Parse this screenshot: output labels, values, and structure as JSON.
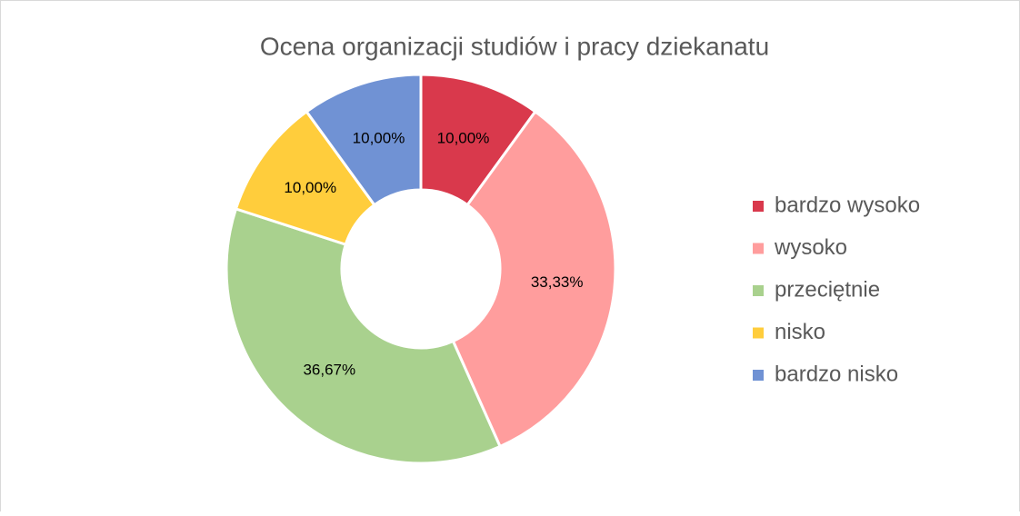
{
  "chart_data": {
    "type": "donut",
    "title": "Ocena organizacji studiów i pracy dziekanatu",
    "categories": [
      "bardzo wysoko",
      "wysoko",
      "przeciętnie",
      "nisko",
      "bardzo nisko"
    ],
    "values": [
      10,
      33.33,
      36.67,
      10,
      10
    ],
    "value_labels": [
      "10,00%",
      "33,33%",
      "36,67%",
      "10,00%",
      "10,00%"
    ],
    "colors": [
      "#d9394c",
      "#ff9d9d",
      "#a9d18e",
      "#ffcd3c",
      "#7092d4"
    ],
    "legend": "right"
  }
}
